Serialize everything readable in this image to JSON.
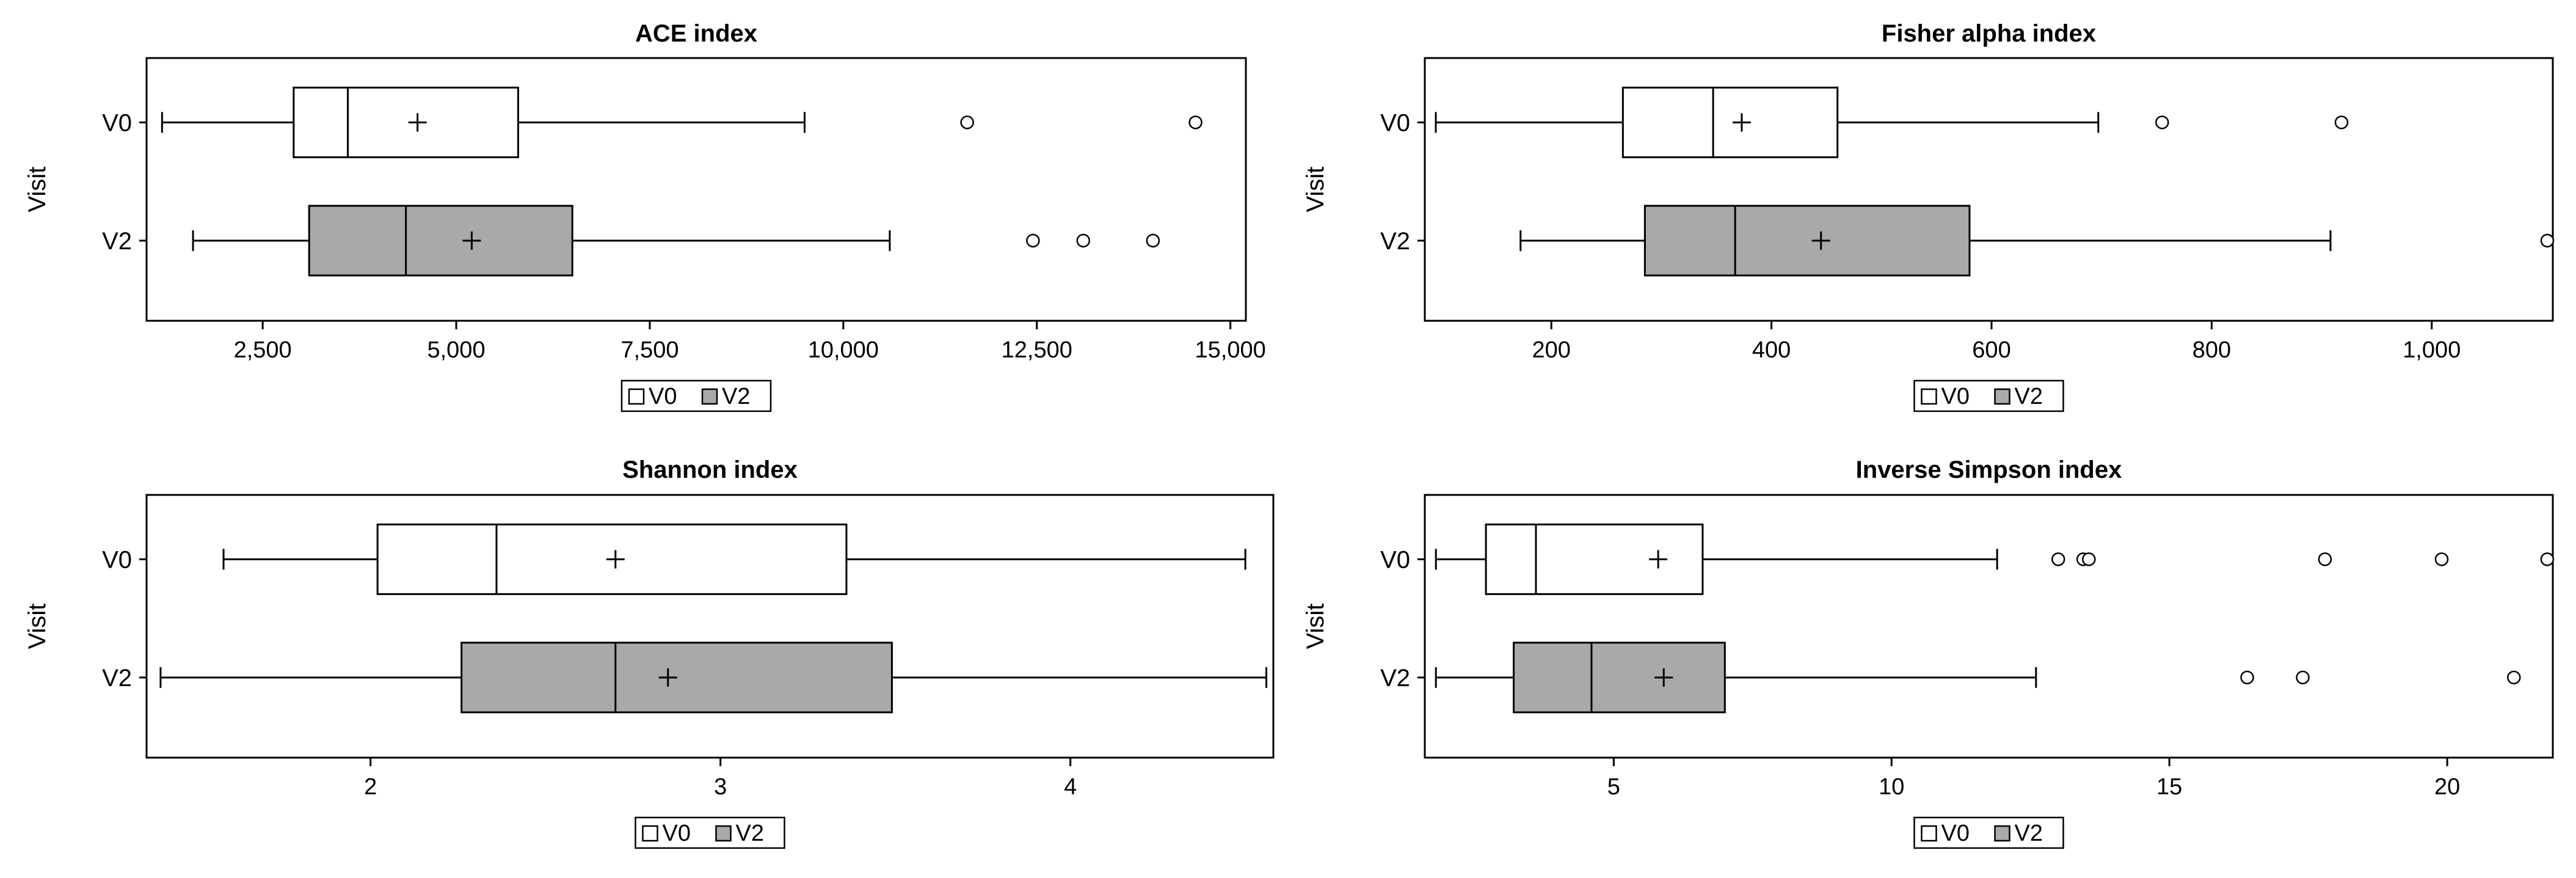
{
  "chart_data": [
    {
      "type": "boxplot",
      "orientation": "horizontal",
      "title": "ACE index",
      "ylabel": "Visit",
      "categories": [
        "V0",
        "V2"
      ],
      "xlim": [
        1000,
        15200
      ],
      "xticks": [
        2500,
        5000,
        7500,
        10000,
        12500,
        15000
      ],
      "xtick_labels": [
        "2,500",
        "5,000",
        "7,500",
        "10,000",
        "12,500",
        "15,000"
      ],
      "series": [
        {
          "name": "V0",
          "whisker_low": 1200,
          "q1": 2900,
          "median": 3600,
          "mean": 4500,
          "q3": 5800,
          "whisker_high": 9500,
          "outliers": [
            11600,
            14550
          ]
        },
        {
          "name": "V2",
          "whisker_low": 1600,
          "q1": 3100,
          "median": 4350,
          "mean": 5200,
          "q3": 6500,
          "whisker_high": 10600,
          "outliers": [
            12450,
            13100,
            14000
          ]
        }
      ],
      "legend": {
        "placement": "bottom-center",
        "labels": [
          "V0",
          "V2"
        ]
      }
    },
    {
      "type": "boxplot",
      "orientation": "horizontal",
      "title": "Fisher alpha index",
      "ylabel": "Visit",
      "categories": [
        "V0",
        "V2"
      ],
      "xlim": [
        85,
        1110
      ],
      "xticks": [
        200,
        400,
        600,
        800,
        1000
      ],
      "xtick_labels": [
        "200",
        "400",
        "600",
        "800",
        "1,000"
      ],
      "series": [
        {
          "name": "V0",
          "whisker_low": 95,
          "q1": 265,
          "median": 347,
          "mean": 373,
          "q3": 460,
          "whisker_high": 697,
          "outliers": [
            755,
            918
          ]
        },
        {
          "name": "V2",
          "whisker_low": 172,
          "q1": 285,
          "median": 367,
          "mean": 445,
          "q3": 580,
          "whisker_high": 908,
          "outliers": [
            1105
          ]
        }
      ],
      "legend": {
        "placement": "bottom-center",
        "labels": [
          "V0",
          "V2"
        ]
      }
    },
    {
      "type": "boxplot",
      "orientation": "horizontal",
      "title": "Shannon index",
      "ylabel": "Visit",
      "categories": [
        "V0",
        "V2"
      ],
      "xlim": [
        1.36,
        4.58
      ],
      "xticks": [
        2,
        3,
        4
      ],
      "xtick_labels": [
        "2",
        "3",
        "4"
      ],
      "series": [
        {
          "name": "V0",
          "whisker_low": 1.58,
          "q1": 2.02,
          "median": 2.36,
          "mean": 2.7,
          "q3": 3.36,
          "whisker_high": 4.5,
          "outliers": []
        },
        {
          "name": "V2",
          "whisker_low": 1.4,
          "q1": 2.26,
          "median": 2.7,
          "mean": 2.85,
          "q3": 3.49,
          "whisker_high": 4.56,
          "outliers": []
        }
      ],
      "legend": {
        "placement": "bottom-center",
        "labels": [
          "V0",
          "V2"
        ]
      }
    },
    {
      "type": "boxplot",
      "orientation": "horizontal",
      "title": "Inverse Simpson index",
      "ylabel": "Visit",
      "categories": [
        "V0",
        "V2"
      ],
      "xlim": [
        1.6,
        21.9
      ],
      "xticks": [
        5,
        10,
        15,
        20
      ],
      "xtick_labels": [
        "5",
        "10",
        "15",
        "20"
      ],
      "series": [
        {
          "name": "V0",
          "whisker_low": 1.8,
          "q1": 2.7,
          "median": 3.6,
          "mean": 5.8,
          "q3": 6.6,
          "whisker_high": 11.9,
          "outliers": [
            13.0,
            13.45,
            13.55,
            17.8,
            19.9,
            21.8
          ]
        },
        {
          "name": "V2",
          "whisker_low": 1.8,
          "q1": 3.2,
          "median": 4.6,
          "mean": 5.9,
          "q3": 7.0,
          "whisker_high": 12.6,
          "outliers": [
            16.4,
            17.4,
            21.2
          ]
        }
      ],
      "legend": {
        "placement": "bottom-center",
        "labels": [
          "V0",
          "V2"
        ]
      }
    }
  ],
  "colors": {
    "V0": "#ffffff",
    "V2": "#a9a9a9",
    "axis": "#000000"
  }
}
